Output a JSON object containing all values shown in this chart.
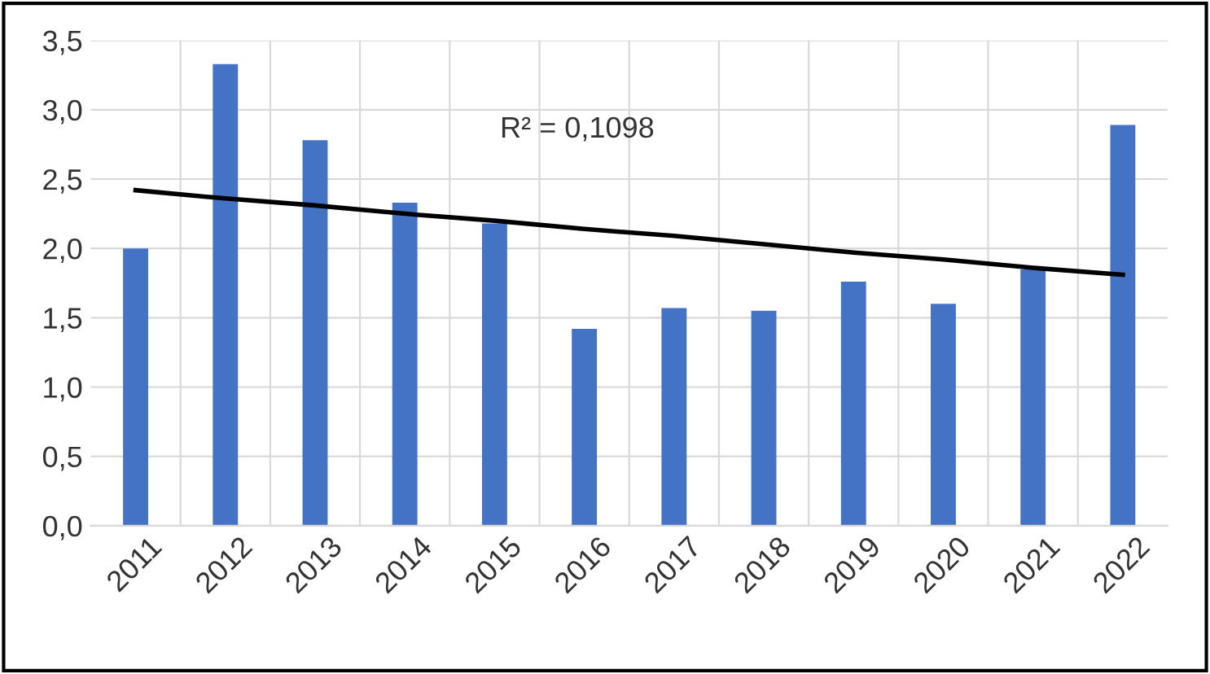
{
  "chart_data": {
    "type": "bar",
    "categories": [
      "2011",
      "2012",
      "2013",
      "2014",
      "2015",
      "2016",
      "2017",
      "2018",
      "2019",
      "2020",
      "2021",
      "2022"
    ],
    "series": [
      {
        "color": "#4472c4",
        "values": [
          2.0,
          3.33,
          2.78,
          2.33,
          2.18,
          1.42,
          1.57,
          1.55,
          1.76,
          1.6,
          1.85,
          2.89
        ]
      },
      {
        "type": "line",
        "color": "#000000",
        "values": [
          2.42,
          2.36,
          2.31,
          2.25,
          2.2,
          2.14,
          2.09,
          2.03,
          1.97,
          1.92,
          1.86,
          1.81
        ]
      }
    ],
    "ylim": [
      0,
      3.5
    ],
    "yticks": [
      {
        "value": 0,
        "label": "0,0"
      },
      {
        "value": 0.5,
        "label": "0,5"
      },
      {
        "value": 1,
        "label": "1,0"
      },
      {
        "value": 1.5,
        "label": "1,5"
      },
      {
        "value": 2,
        "label": "2,0"
      },
      {
        "value": 2.5,
        "label": "2,5"
      },
      {
        "value": 3,
        "label": "3,0"
      },
      {
        "value": 3.5,
        "label": "3,5"
      }
    ],
    "grid": true,
    "annotations": [
      "R² = 0,1098"
    ]
  }
}
